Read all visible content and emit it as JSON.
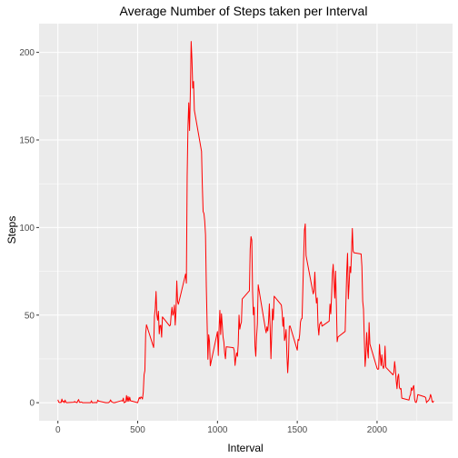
{
  "chart_data": {
    "type": "line",
    "title": "Average Number of Steps taken per Interval",
    "xlabel": "Interval",
    "ylabel": "Steps",
    "xlim": [
      -118,
      2473
    ],
    "ylim": [
      -10.3,
      216.4
    ],
    "x_ticks": [
      0,
      500,
      1000,
      1500,
      2000
    ],
    "x_tick_labels": [
      "0",
      "500",
      "1000",
      "1500",
      "2000"
    ],
    "y_ticks": [
      0,
      50,
      100,
      150,
      200
    ],
    "y_tick_labels": [
      "0",
      "50",
      "100",
      "150",
      "200"
    ],
    "grid": true,
    "legend": "none",
    "colors": {
      "panel": "#ebebeb",
      "grid_major": "#ffffff",
      "line": "#ff0000",
      "tick_text": "#4d4d4d"
    },
    "series": [
      {
        "values": [
          [
            0,
            1.7
          ],
          [
            5,
            0.3
          ],
          [
            10,
            0.1
          ],
          [
            15,
            0.2
          ],
          [
            20,
            0.1
          ],
          [
            25,
            2.1
          ],
          [
            30,
            0.5
          ],
          [
            35,
            0.9
          ],
          [
            40,
            0
          ],
          [
            45,
            1.5
          ],
          [
            50,
            0.3
          ],
          [
            55,
            0
          ],
          [
            100,
            0.3
          ],
          [
            105,
            0.7
          ],
          [
            110,
            0.2
          ],
          [
            115,
            0.3
          ],
          [
            120,
            0
          ],
          [
            125,
            1.1
          ],
          [
            130,
            1.8
          ],
          [
            135,
            0.2
          ],
          [
            140,
            0.2
          ],
          [
            145,
            0.4
          ],
          [
            150,
            0.3
          ],
          [
            155,
            0
          ],
          [
            200,
            0
          ],
          [
            205,
            0
          ],
          [
            210,
            1.1
          ],
          [
            215,
            0
          ],
          [
            220,
            0
          ],
          [
            225,
            0.1
          ],
          [
            230,
            0
          ],
          [
            235,
            0.2
          ],
          [
            240,
            0
          ],
          [
            245,
            0
          ],
          [
            250,
            1.5
          ],
          [
            255,
            0.9
          ],
          [
            300,
            0
          ],
          [
            305,
            0
          ],
          [
            310,
            0
          ],
          [
            315,
            0
          ],
          [
            320,
            0.2
          ],
          [
            325,
            0.6
          ],
          [
            330,
            1.6
          ],
          [
            335,
            0.6
          ],
          [
            340,
            0.5
          ],
          [
            345,
            0.1
          ],
          [
            350,
            0
          ],
          [
            355,
            0
          ],
          [
            400,
            1.2
          ],
          [
            405,
            0.9
          ],
          [
            410,
            2.6
          ],
          [
            415,
            0
          ],
          [
            420,
            0.3
          ],
          [
            425,
            0.4
          ],
          [
            430,
            4.1
          ],
          [
            435,
            0.7
          ],
          [
            440,
            3.5
          ],
          [
            445,
            0.8
          ],
          [
            450,
            3.1
          ],
          [
            455,
            1.1
          ],
          [
            500,
            0
          ],
          [
            505,
            1.6
          ],
          [
            510,
            3.0
          ],
          [
            515,
            2.2
          ],
          [
            520,
            3.3
          ],
          [
            525,
            3.0
          ],
          [
            530,
            2.1
          ],
          [
            535,
            6.1
          ],
          [
            540,
            16.0
          ],
          [
            545,
            18.3
          ],
          [
            550,
            39.5
          ],
          [
            555,
            44.5
          ],
          [
            600,
            31.5
          ],
          [
            605,
            49.3
          ],
          [
            610,
            53.8
          ],
          [
            615,
            63.5
          ],
          [
            620,
            50.0
          ],
          [
            625,
            47.1
          ],
          [
            630,
            52.2
          ],
          [
            635,
            39.3
          ],
          [
            640,
            44.0
          ],
          [
            645,
            44.2
          ],
          [
            650,
            37.4
          ],
          [
            655,
            49.0
          ],
          [
            700,
            43.8
          ],
          [
            705,
            44.4
          ],
          [
            710,
            50.5
          ],
          [
            715,
            54.5
          ],
          [
            720,
            49.9
          ],
          [
            725,
            51.0
          ],
          [
            730,
            55.7
          ],
          [
            735,
            44.3
          ],
          [
            740,
            52.3
          ],
          [
            745,
            69.5
          ],
          [
            750,
            57.8
          ],
          [
            755,
            56.2
          ],
          [
            800,
            73.4
          ],
          [
            805,
            68.2
          ],
          [
            810,
            129.4
          ],
          [
            815,
            157.5
          ],
          [
            820,
            171.2
          ],
          [
            825,
            155.4
          ],
          [
            830,
            177.3
          ],
          [
            835,
            206.2
          ],
          [
            840,
            195.9
          ],
          [
            845,
            179.6
          ],
          [
            850,
            183.4
          ],
          [
            855,
            167.0
          ],
          [
            900,
            143.5
          ],
          [
            905,
            124.0
          ],
          [
            910,
            109.1
          ],
          [
            915,
            108.1
          ],
          [
            920,
            103.7
          ],
          [
            925,
            95.9
          ],
          [
            930,
            66.2
          ],
          [
            935,
            45.2
          ],
          [
            940,
            24.8
          ],
          [
            945,
            38.8
          ],
          [
            950,
            35.0
          ],
          [
            955,
            21.1
          ],
          [
            1000,
            40.6
          ],
          [
            1005,
            26.9
          ],
          [
            1010,
            42.4
          ],
          [
            1015,
            52.7
          ],
          [
            1020,
            38.9
          ],
          [
            1025,
            50.8
          ],
          [
            1030,
            44.3
          ],
          [
            1035,
            37.4
          ],
          [
            1040,
            34.7
          ],
          [
            1045,
            28.3
          ],
          [
            1050,
            25.1
          ],
          [
            1055,
            31.9
          ],
          [
            1100,
            31.4
          ],
          [
            1105,
            29.7
          ],
          [
            1110,
            21.3
          ],
          [
            1115,
            25.5
          ],
          [
            1120,
            28.4
          ],
          [
            1125,
            26.5
          ],
          [
            1130,
            33.4
          ],
          [
            1135,
            49.98
          ],
          [
            1140,
            42.0
          ],
          [
            1145,
            44.6
          ],
          [
            1150,
            46.0
          ],
          [
            1155,
            59.2
          ],
          [
            1200,
            63.9
          ],
          [
            1205,
            87.7
          ],
          [
            1210,
            94.8
          ],
          [
            1215,
            92.8
          ],
          [
            1220,
            63.4
          ],
          [
            1225,
            50.2
          ],
          [
            1230,
            54.5
          ],
          [
            1235,
            32.4
          ],
          [
            1240,
            26.5
          ],
          [
            1245,
            37.7
          ],
          [
            1250,
            45.1
          ],
          [
            1255,
            67.3
          ],
          [
            1300,
            42.3
          ],
          [
            1305,
            39.9
          ],
          [
            1310,
            43.3
          ],
          [
            1315,
            41.0
          ],
          [
            1320,
            46.2
          ],
          [
            1325,
            56.4
          ],
          [
            1330,
            42.8
          ],
          [
            1335,
            25.1
          ],
          [
            1340,
            39.9
          ],
          [
            1345,
            53.5
          ],
          [
            1350,
            47.3
          ],
          [
            1355,
            60.8
          ],
          [
            1400,
            55.8
          ],
          [
            1405,
            51.9
          ],
          [
            1410,
            43.6
          ],
          [
            1415,
            48.7
          ],
          [
            1420,
            35.5
          ],
          [
            1425,
            37.5
          ],
          [
            1430,
            41.8
          ],
          [
            1435,
            27.5
          ],
          [
            1440,
            17.1
          ],
          [
            1445,
            26.1
          ],
          [
            1450,
            43.6
          ],
          [
            1455,
            43.8
          ],
          [
            1500,
            30.0
          ],
          [
            1505,
            36.1
          ],
          [
            1510,
            35.5
          ],
          [
            1515,
            38.8
          ],
          [
            1520,
            46.0
          ],
          [
            1525,
            47.8
          ],
          [
            1530,
            48.1
          ],
          [
            1535,
            65.3
          ],
          [
            1540,
            82.9
          ],
          [
            1545,
            98.7
          ],
          [
            1550,
            102.1
          ],
          [
            1555,
            83.96
          ],
          [
            1600,
            62.1
          ],
          [
            1605,
            64.1
          ],
          [
            1610,
            74.5
          ],
          [
            1615,
            63.2
          ],
          [
            1620,
            56.9
          ],
          [
            1625,
            59.8
          ],
          [
            1630,
            43.9
          ],
          [
            1635,
            38.6
          ],
          [
            1640,
            44.7
          ],
          [
            1645,
            45.5
          ],
          [
            1650,
            46.2
          ],
          [
            1655,
            43.7
          ],
          [
            1700,
            46.6
          ],
          [
            1705,
            56.3
          ],
          [
            1710,
            50.7
          ],
          [
            1715,
            61.2
          ],
          [
            1720,
            73.4
          ],
          [
            1725,
            79.0
          ],
          [
            1730,
            68.9
          ],
          [
            1735,
            59.7
          ],
          [
            1740,
            75.1
          ],
          [
            1745,
            56.5
          ],
          [
            1750,
            34.8
          ],
          [
            1755,
            37.5
          ],
          [
            1800,
            40.7
          ],
          [
            1805,
            58.0
          ],
          [
            1810,
            74.7
          ],
          [
            1815,
            85.3
          ],
          [
            1820,
            59.3
          ],
          [
            1825,
            67.8
          ],
          [
            1830,
            77.7
          ],
          [
            1835,
            74.2
          ],
          [
            1840,
            85.3
          ],
          [
            1845,
            99.5
          ],
          [
            1850,
            86.6
          ],
          [
            1855,
            85.6
          ],
          [
            1900,
            84.9
          ],
          [
            1905,
            77.8
          ],
          [
            1910,
            58.0
          ],
          [
            1915,
            53.4
          ],
          [
            1920,
            36.3
          ],
          [
            1925,
            20.7
          ],
          [
            1930,
            27.4
          ],
          [
            1935,
            40.0
          ],
          [
            1940,
            30.2
          ],
          [
            1945,
            25.5
          ],
          [
            1950,
            45.7
          ],
          [
            1955,
            33.5
          ],
          [
            2000,
            19.6
          ],
          [
            2005,
            19.0
          ],
          [
            2010,
            19.3
          ],
          [
            2015,
            33.3
          ],
          [
            2020,
            26.8
          ],
          [
            2025,
            21.2
          ],
          [
            2030,
            27.3
          ],
          [
            2035,
            21.3
          ],
          [
            2040,
            19.5
          ],
          [
            2045,
            21.3
          ],
          [
            2050,
            32.3
          ],
          [
            2055,
            20.2
          ],
          [
            2100,
            15.9
          ],
          [
            2105,
            17.2
          ],
          [
            2110,
            23.5
          ],
          [
            2115,
            19.2
          ],
          [
            2120,
            12.5
          ],
          [
            2125,
            8.0
          ],
          [
            2130,
            14.7
          ],
          [
            2135,
            16.3
          ],
          [
            2140,
            8.7
          ],
          [
            2145,
            7.8
          ],
          [
            2150,
            8.1
          ],
          [
            2155,
            2.6
          ],
          [
            2200,
            1.5
          ],
          [
            2205,
            3.7
          ],
          [
            2210,
            4.8
          ],
          [
            2215,
            8.5
          ],
          [
            2220,
            7.1
          ],
          [
            2225,
            8.7
          ],
          [
            2230,
            9.8
          ],
          [
            2235,
            2.2
          ],
          [
            2240,
            0.3
          ],
          [
            2245,
            0.1
          ],
          [
            2250,
            1.6
          ],
          [
            2255,
            4.6
          ],
          [
            2300,
            3.3
          ],
          [
            2305,
            2.8
          ],
          [
            2310,
            0
          ],
          [
            2315,
            0.8
          ],
          [
            2320,
            1.0
          ],
          [
            2325,
            1.6
          ],
          [
            2330,
            2.6
          ],
          [
            2335,
            4.7
          ],
          [
            2340,
            3.3
          ],
          [
            2345,
            0.6
          ],
          [
            2350,
            0.2
          ],
          [
            2355,
            1.1
          ]
        ]
      }
    ]
  }
}
